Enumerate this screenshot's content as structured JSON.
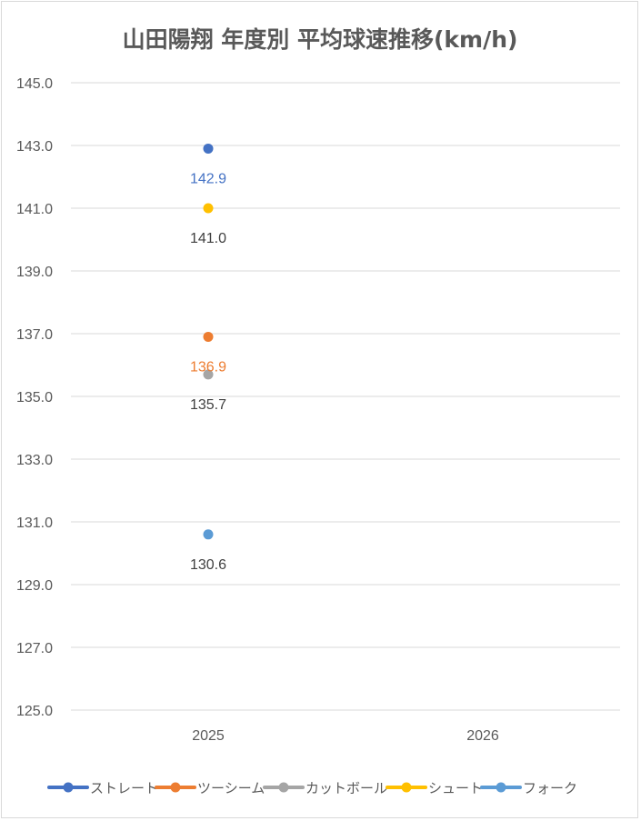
{
  "chart_data": {
    "type": "scatter",
    "title": "山田陽翔 年度別 平均球速推移(km/h)",
    "xlabel": "",
    "ylabel": "",
    "categories": [
      "2025",
      "2026"
    ],
    "ylim": [
      125.0,
      145.0
    ],
    "y_ticks": [
      "125.0",
      "127.0",
      "129.0",
      "131.0",
      "133.0",
      "135.0",
      "137.0",
      "139.0",
      "141.0",
      "143.0",
      "145.0"
    ],
    "grid": true,
    "legend_position": "bottom",
    "series": [
      {
        "name": "ストレート",
        "color": "#4472c4",
        "label_color": "#4472c4",
        "values": [
          142.9,
          null
        ],
        "labels": [
          "142.9",
          ""
        ]
      },
      {
        "name": "ツーシーム",
        "color": "#ed7d31",
        "label_color": "#ed7d31",
        "values": [
          136.9,
          null
        ],
        "labels": [
          "136.9",
          ""
        ]
      },
      {
        "name": "カットボール",
        "color": "#a5a5a5",
        "label_color": "#404040",
        "values": [
          135.7,
          null
        ],
        "labels": [
          "135.7",
          ""
        ]
      },
      {
        "name": "シュート",
        "color": "#ffc000",
        "label_color": "#404040",
        "values": [
          141.0,
          null
        ],
        "labels": [
          "141.0",
          ""
        ]
      },
      {
        "name": "フォーク",
        "color": "#5b9bd5",
        "label_color": "#404040",
        "values": [
          130.6,
          null
        ],
        "labels": [
          "130.6",
          ""
        ]
      }
    ]
  }
}
